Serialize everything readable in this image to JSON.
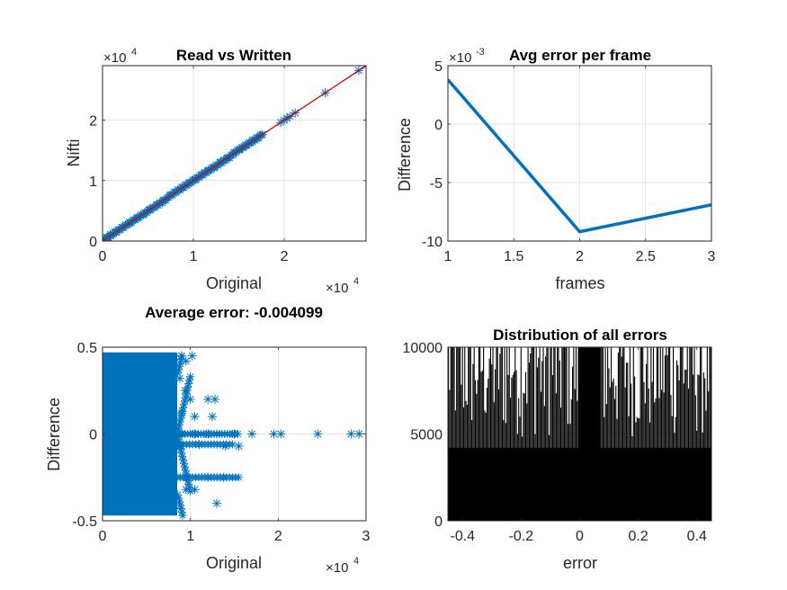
{
  "chart_data": [
    {
      "type": "scatter",
      "title": "Read vs Written",
      "xlabel": "Original",
      "ylabel": "Nifti",
      "xlim": [
        0,
        29000
      ],
      "ylim": [
        0,
        29000
      ],
      "xticks": [
        0,
        1,
        2
      ],
      "yticks": [
        0,
        1,
        2
      ],
      "x_exponent": "4",
      "y_exponent": "4",
      "exponent_base": "×10",
      "grid": true,
      "marker": "asterisk",
      "marker_color": "#0072BD",
      "line_color": "#D90000",
      "points": [
        [
          0,
          0
        ],
        [
          200,
          300
        ],
        [
          500,
          550
        ],
        [
          900,
          850
        ],
        [
          1500,
          1500
        ],
        [
          2200,
          2250
        ],
        [
          3000,
          2950
        ],
        [
          3800,
          3850
        ],
        [
          4500,
          4450
        ],
        [
          5200,
          5250
        ],
        [
          6000,
          6000
        ],
        [
          6700,
          6650
        ],
        [
          7400,
          7450
        ],
        [
          8100,
          8050
        ],
        [
          8800,
          8850
        ],
        [
          9500,
          9500
        ],
        [
          10200,
          10150
        ],
        [
          10900,
          10950
        ],
        [
          11600,
          11600
        ],
        [
          12300,
          12250
        ],
        [
          13000,
          13050
        ],
        [
          13700,
          13700
        ],
        [
          14400,
          14350
        ],
        [
          15100,
          15150
        ],
        [
          15800,
          15800
        ],
        [
          16500,
          16450
        ],
        [
          17000,
          17050
        ],
        [
          17600,
          17600
        ],
        [
          19600,
          19600
        ],
        [
          20000,
          20000
        ],
        [
          20300,
          20300
        ],
        [
          20600,
          20600
        ],
        [
          21200,
          21200
        ],
        [
          24500,
          24500
        ],
        [
          28200,
          28200
        ],
        [
          29000,
          29000
        ]
      ],
      "fit_line": [
        [
          0,
          0
        ],
        [
          29000,
          29000
        ]
      ]
    },
    {
      "type": "line",
      "title": "Avg error per frame",
      "xlabel": "frames",
      "ylabel": "Difference",
      "xlim": [
        1,
        3
      ],
      "ylim": [
        -10,
        5
      ],
      "xticks": [
        1,
        1.5,
        2,
        2.5,
        3
      ],
      "yticks": [
        -10,
        -5,
        0,
        5
      ],
      "y_exponent": "-3",
      "exponent_base": "×10",
      "grid": true,
      "line_color": "#0072BD",
      "x": [
        1,
        2,
        3
      ],
      "y": [
        3.8,
        -9.2,
        -6.9
      ]
    },
    {
      "type": "scatter",
      "title": "Average error: -0.004099",
      "xlabel": "Original",
      "ylabel": "Difference",
      "xlim": [
        0,
        30000
      ],
      "ylim": [
        -0.5,
        0.5
      ],
      "xticks": [
        0,
        1,
        2,
        3
      ],
      "yticks": [
        -0.5,
        0,
        0.5
      ],
      "x_exponent": "4",
      "exponent_base": "×10",
      "grid": true,
      "marker": "asterisk",
      "marker_color": "#0072BD",
      "dense_region": {
        "x": [
          0,
          8500
        ],
        "y": [
          -0.47,
          0.47
        ]
      },
      "points": [
        [
          9000,
          0.45
        ],
        [
          9500,
          0.42
        ],
        [
          10200,
          0.45
        ],
        [
          8800,
          0.32
        ],
        [
          9400,
          0.25
        ],
        [
          10000,
          0.2
        ],
        [
          12000,
          0.2
        ],
        [
          12800,
          0.2
        ],
        [
          9000,
          0.12
        ],
        [
          10500,
          0.1
        ],
        [
          12500,
          0.1
        ],
        [
          9000,
          0.0
        ],
        [
          10500,
          0.0
        ],
        [
          12000,
          0.0
        ],
        [
          13000,
          0.0
        ],
        [
          15000,
          0.0
        ],
        [
          17000,
          0.0
        ],
        [
          19500,
          0.0
        ],
        [
          20300,
          0.0
        ],
        [
          24500,
          0.0
        ],
        [
          28300,
          0.0
        ],
        [
          29200,
          0.0
        ],
        [
          9000,
          -0.07
        ],
        [
          11000,
          -0.06
        ],
        [
          14000,
          -0.07
        ],
        [
          15500,
          -0.07
        ],
        [
          9500,
          -0.25
        ],
        [
          12000,
          -0.25
        ],
        [
          13800,
          -0.25
        ],
        [
          9500,
          -0.32
        ],
        [
          10500,
          -0.32
        ],
        [
          13000,
          -0.4
        ]
      ]
    },
    {
      "type": "histogram",
      "title": "Distribution of all errors",
      "xlabel": "error",
      "ylabel": "",
      "xlim": [
        -0.45,
        0.45
      ],
      "ylim": [
        0,
        10000
      ],
      "xticks": [
        -0.4,
        -0.2,
        0,
        0.2,
        0.4
      ],
      "yticks": [
        0,
        5000,
        10000
      ],
      "grid": true,
      "bar_color": "#000000",
      "bin_width": 0.004,
      "baseline": 4200,
      "center_range": [
        -0.005,
        0.07
      ]
    }
  ]
}
